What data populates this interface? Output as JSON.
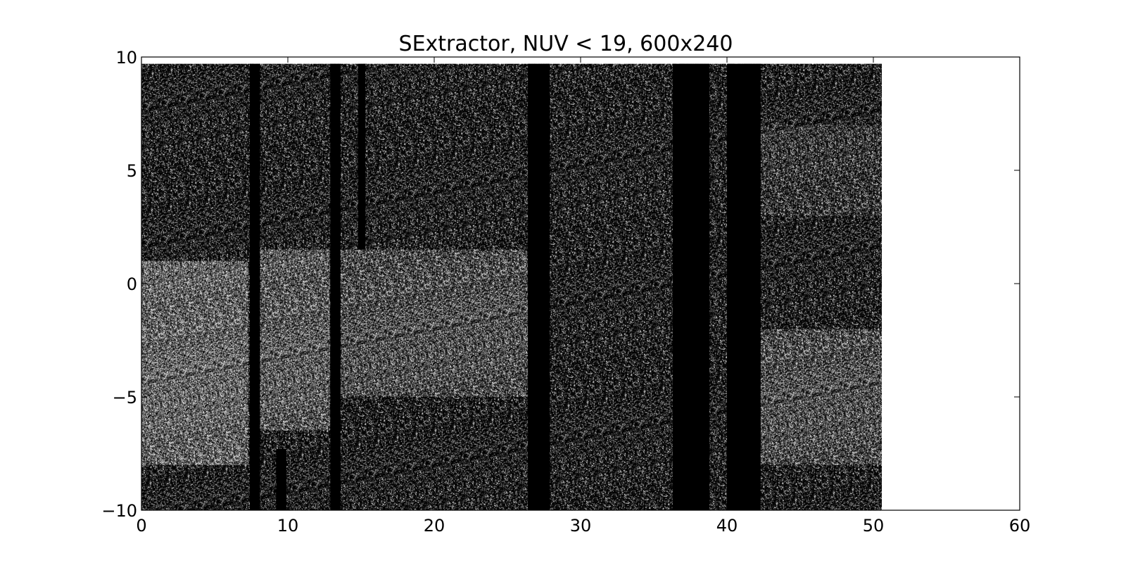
{
  "chart_data": {
    "type": "heatmap",
    "title": "SExtractor, NUV < 19, 600x240",
    "xlabel": "",
    "ylabel": "",
    "xlim": [
      0,
      60
    ],
    "ylim": [
      -10,
      10
    ],
    "x_ticks": [
      0,
      10,
      20,
      30,
      40,
      50,
      60
    ],
    "x_tick_labels": [
      "0",
      "10",
      "20",
      "30",
      "40",
      "50",
      "60"
    ],
    "y_ticks": [
      -10,
      -5,
      0,
      5,
      10
    ],
    "y_tick_labels": [
      "−10",
      "−5",
      "0",
      "5",
      "10"
    ],
    "colormap": "gray",
    "image_extent": {
      "x": [
        0,
        50.6
      ],
      "y": [
        -10,
        9.7
      ]
    },
    "grid": false,
    "legend": "none",
    "empty_columns": [
      {
        "x0": 7.4,
        "x1": 8.1
      },
      {
        "x0": 12.9,
        "x1": 13.6
      },
      {
        "x0": 26.4,
        "x1": 27.9
      },
      {
        "x0": 36.3,
        "x1": 38.8
      },
      {
        "x0": 40.0,
        "x1": 42.3
      }
    ],
    "partial_empty_columns": [
      {
        "x0": 9.2,
        "x1": 9.9,
        "y0": -10,
        "y1": -7.3
      },
      {
        "x0": 14.8,
        "x1": 15.3,
        "y0": 1.5,
        "y1": 9.7
      }
    ],
    "bright_regions": [
      {
        "x0": 0,
        "x1": 7.3,
        "y0": -8,
        "y1": 1,
        "level": 0.42
      },
      {
        "x0": 8.1,
        "x1": 12.9,
        "y0": -6.5,
        "y1": 1.5,
        "level": 0.36
      },
      {
        "x0": 13.6,
        "x1": 26.4,
        "y0": -5,
        "y1": 1.5,
        "level": 0.3
      },
      {
        "x0": 42.3,
        "x1": 50.6,
        "y0": -8,
        "y1": -2,
        "level": 0.3
      },
      {
        "x0": 42.3,
        "x1": 50.6,
        "y0": 3,
        "y1": 7,
        "level": 0.2
      }
    ],
    "colors": {
      "background": "#ffffff",
      "axes": "#000000",
      "min": "#000000",
      "max": "#ffffff"
    }
  }
}
